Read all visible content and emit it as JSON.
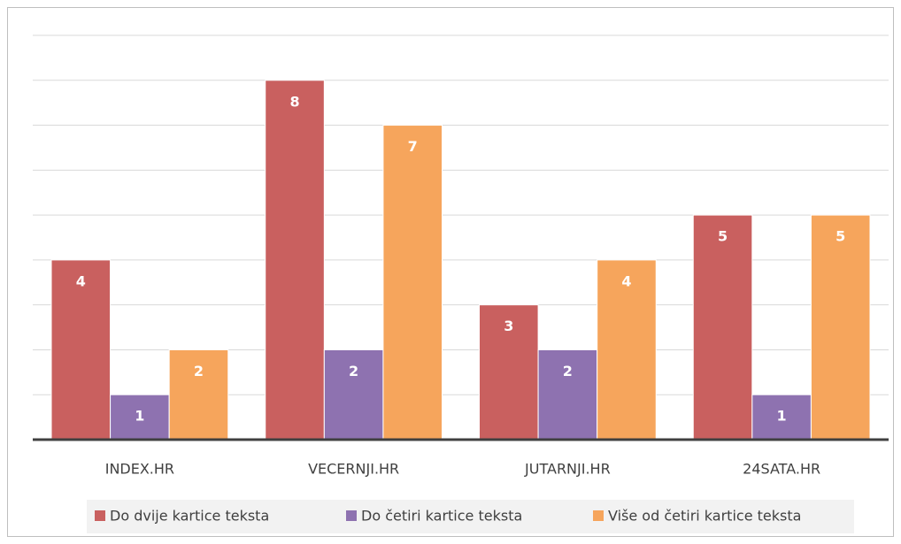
{
  "chart_data": {
    "type": "bar",
    "categories": [
      "INDEX.HR",
      "VECERNJI.HR",
      "JUTARNJI.HR",
      "24SATA.HR"
    ],
    "series": [
      {
        "name": "Do dvije kartice teksta",
        "color": "#c9605f",
        "values": [
          4,
          8,
          3,
          5
        ]
      },
      {
        "name": "Do četiri kartice teksta",
        "color": "#8e72b0",
        "values": [
          1,
          2,
          2,
          1
        ]
      },
      {
        "name": "Više od četiri kartice teksta",
        "color": "#f6a55c",
        "values": [
          2,
          7,
          4,
          5
        ]
      }
    ],
    "ylim": [
      0,
      9
    ],
    "yticks": [
      0,
      1,
      2,
      3,
      4,
      5,
      6,
      7,
      8,
      9
    ],
    "grid": true,
    "legend": "bottom"
  }
}
